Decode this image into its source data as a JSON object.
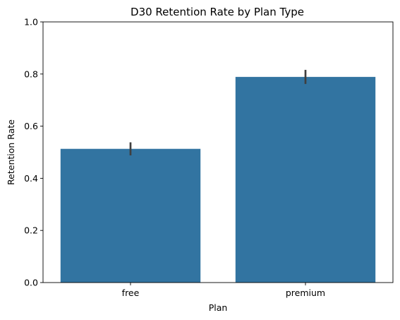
{
  "chart_data": {
    "type": "bar",
    "title": "D30 Retention Rate by Plan Type",
    "xlabel": "Plan",
    "ylabel": "Retention Rate",
    "categories": [
      "free",
      "premium"
    ],
    "values": [
      0.513,
      0.789
    ],
    "error_low": [
      0.488,
      0.762
    ],
    "error_high": [
      0.538,
      0.816
    ],
    "ylim": [
      0,
      1.0
    ],
    "yticks": [
      "0.0",
      "0.2",
      "0.4",
      "0.6",
      "0.8",
      "1.0"
    ],
    "ytick_values": [
      0,
      0.2,
      0.4,
      0.6,
      0.8,
      1.0
    ],
    "grid": false,
    "legend": "none",
    "bar_color": "#3274a1",
    "error_color": "#3f3f3f"
  }
}
